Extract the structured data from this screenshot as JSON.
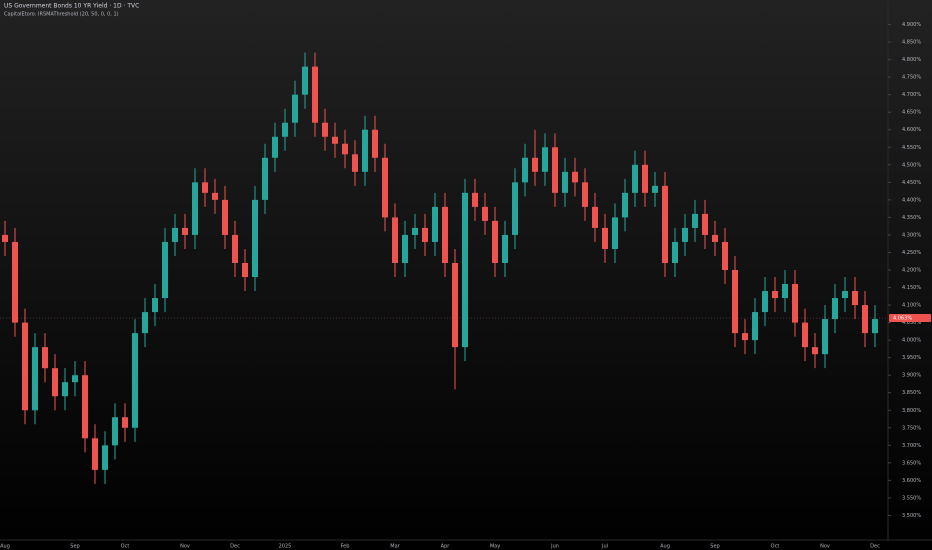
{
  "chart_data": {
    "type": "candlestick",
    "title": "US Government Bonds 10 YR Yield · 1D · TVC",
    "subtitle": "CapitalEtoro: IRSMAThreshold (20, 50, 0, 0, 1)",
    "up_color": "#26a69a",
    "down_color": "#ef5350",
    "categories": [
      "Aug",
      null,
      null,
      null,
      null,
      null,
      null,
      "Sep",
      null,
      null,
      null,
      null,
      "Oct",
      null,
      null,
      null,
      null,
      null,
      "Nov",
      null,
      null,
      null,
      null,
      "Dec",
      null,
      null,
      null,
      null,
      "2025",
      null,
      null,
      null,
      null,
      null,
      "Feb",
      null,
      null,
      null,
      null,
      "Mar",
      null,
      null,
      null,
      null,
      "Apr",
      null,
      null,
      null,
      null,
      "May",
      null,
      null,
      null,
      null,
      null,
      "Jun",
      null,
      null,
      null,
      null,
      "Jul",
      null,
      null,
      null,
      null,
      null,
      "Aug",
      null,
      null,
      null,
      null,
      "Sep",
      null,
      null,
      null,
      null,
      null,
      "Oct",
      null,
      null,
      null,
      null,
      "Nov",
      null,
      null,
      null,
      null,
      "Dec"
    ],
    "open": [
      4.3,
      4.28,
      4.05,
      3.8,
      3.98,
      3.92,
      3.84,
      3.88,
      3.9,
      3.72,
      3.63,
      3.7,
      3.78,
      3.75,
      4.02,
      4.08,
      4.12,
      4.28,
      4.32,
      4.3,
      4.45,
      4.42,
      4.4,
      4.3,
      4.22,
      4.18,
      4.4,
      4.52,
      4.58,
      4.62,
      4.7,
      4.78,
      4.62,
      4.58,
      4.56,
      4.53,
      4.48,
      4.6,
      4.52,
      4.35,
      4.22,
      4.3,
      4.32,
      4.28,
      4.38,
      4.22,
      3.98,
      4.42,
      4.38,
      4.34,
      4.22,
      4.3,
      4.45,
      4.52,
      4.48,
      4.55,
      4.42,
      4.48,
      4.45,
      4.38,
      4.32,
      4.26,
      4.35,
      4.42,
      4.5,
      4.42,
      4.44,
      4.22,
      4.28,
      4.32,
      4.36,
      4.3,
      4.28,
      4.2,
      4.02,
      4.0,
      4.08,
      4.14,
      4.12,
      4.16,
      4.05,
      3.98,
      3.96,
      4.06,
      4.12,
      4.14,
      4.1,
      4.02
    ],
    "high": [
      4.34,
      4.32,
      4.09,
      4.02,
      4.02,
      3.96,
      3.92,
      3.94,
      3.94,
      3.76,
      3.74,
      3.82,
      3.82,
      4.06,
      4.12,
      4.16,
      4.32,
      4.36,
      4.36,
      4.49,
      4.49,
      4.46,
      4.44,
      4.34,
      4.26,
      4.44,
      4.56,
      4.62,
      4.66,
      4.74,
      4.82,
      4.82,
      4.66,
      4.62,
      4.6,
      4.57,
      4.64,
      4.64,
      4.56,
      4.39,
      4.34,
      4.36,
      4.36,
      4.42,
      4.42,
      4.26,
      4.46,
      4.46,
      4.42,
      4.38,
      4.34,
      4.49,
      4.56,
      4.6,
      4.59,
      4.59,
      4.52,
      4.52,
      4.49,
      4.42,
      4.36,
      4.39,
      4.46,
      4.54,
      4.54,
      4.48,
      4.48,
      4.32,
      4.36,
      4.4,
      4.4,
      4.34,
      4.32,
      4.24,
      4.06,
      4.12,
      4.18,
      4.18,
      4.2,
      4.2,
      4.09,
      4.02,
      4.1,
      4.16,
      4.18,
      4.18,
      4.14,
      4.1
    ],
    "low": [
      4.24,
      4.01,
      3.76,
      3.76,
      3.88,
      3.8,
      3.8,
      3.84,
      3.68,
      3.59,
      3.59,
      3.66,
      3.71,
      3.71,
      3.98,
      4.04,
      4.08,
      4.24,
      4.26,
      4.26,
      4.38,
      4.36,
      4.26,
      4.18,
      4.14,
      4.14,
      4.36,
      4.48,
      4.54,
      4.58,
      4.66,
      4.58,
      4.54,
      4.52,
      4.49,
      4.44,
      4.44,
      4.48,
      4.31,
      4.18,
      4.18,
      4.26,
      4.24,
      4.24,
      4.18,
      3.86,
      3.94,
      4.34,
      4.3,
      4.18,
      4.18,
      4.26,
      4.41,
      4.44,
      4.44,
      4.38,
      4.38,
      4.41,
      4.34,
      4.28,
      4.22,
      4.22,
      4.31,
      4.38,
      4.38,
      4.38,
      4.18,
      4.18,
      4.24,
      4.28,
      4.26,
      4.24,
      4.16,
      3.98,
      3.96,
      3.96,
      4.04,
      4.08,
      4.08,
      4.01,
      3.94,
      3.92,
      3.92,
      4.02,
      4.08,
      4.06,
      3.98,
      3.98
    ],
    "close": [
      4.28,
      4.05,
      3.8,
      3.98,
      3.92,
      3.84,
      3.88,
      3.9,
      3.72,
      3.63,
      3.7,
      3.78,
      3.75,
      4.02,
      4.08,
      4.12,
      4.28,
      4.32,
      4.3,
      4.45,
      4.42,
      4.4,
      4.3,
      4.22,
      4.18,
      4.4,
      4.52,
      4.58,
      4.62,
      4.7,
      4.78,
      4.62,
      4.58,
      4.56,
      4.53,
      4.48,
      4.6,
      4.52,
      4.35,
      4.22,
      4.3,
      4.32,
      4.28,
      4.38,
      4.22,
      3.98,
      4.42,
      4.38,
      4.34,
      4.22,
      4.3,
      4.45,
      4.52,
      4.48,
      4.55,
      4.42,
      4.48,
      4.45,
      4.38,
      4.32,
      4.26,
      4.35,
      4.42,
      4.5,
      4.42,
      4.44,
      4.22,
      4.28,
      4.32,
      4.36,
      4.3,
      4.28,
      4.2,
      4.02,
      4.0,
      4.08,
      4.14,
      4.12,
      4.16,
      4.05,
      3.98,
      3.96,
      4.06,
      4.12,
      4.14,
      4.1,
      4.02,
      4.06
    ],
    "last_price": {
      "value": 4.063,
      "label": "4.063%"
    },
    "ylim": [
      3.43,
      4.97
    ],
    "yticks": [
      {
        "value": 3.5,
        "label": "3.500%"
      },
      {
        "value": 3.55,
        "label": "3.550%"
      },
      {
        "value": 3.6,
        "label": "3.600%"
      },
      {
        "value": 3.65,
        "label": "3.650%"
      },
      {
        "value": 3.7,
        "label": "3.700%"
      },
      {
        "value": 3.75,
        "label": "3.750%"
      },
      {
        "value": 3.8,
        "label": "3.800%"
      },
      {
        "value": 3.85,
        "label": "3.850%"
      },
      {
        "value": 3.9,
        "label": "3.900%"
      },
      {
        "value": 3.95,
        "label": "3.950%"
      },
      {
        "value": 4.0,
        "label": "4.000%"
      },
      {
        "value": 4.05,
        "label": "4.050%"
      },
      {
        "value": 4.1,
        "label": "4.100%"
      },
      {
        "value": 4.15,
        "label": "4.150%"
      },
      {
        "value": 4.2,
        "label": "4.200%"
      },
      {
        "value": 4.25,
        "label": "4.250%"
      },
      {
        "value": 4.3,
        "label": "4.300%"
      },
      {
        "value": 4.35,
        "label": "4.350%"
      },
      {
        "value": 4.4,
        "label": "4.400%"
      },
      {
        "value": 4.45,
        "label": "4.450%"
      },
      {
        "value": 4.5,
        "label": "4.500%"
      },
      {
        "value": 4.55,
        "label": "4.550%"
      },
      {
        "value": 4.6,
        "label": "4.600%"
      },
      {
        "value": 4.65,
        "label": "4.650%"
      },
      {
        "value": 4.7,
        "label": "4.700%"
      },
      {
        "value": 4.75,
        "label": "4.750%"
      },
      {
        "value": 4.8,
        "label": "4.800%"
      },
      {
        "value": 4.85,
        "label": "4.850%"
      },
      {
        "value": 4.9,
        "label": "4.900%"
      }
    ]
  }
}
